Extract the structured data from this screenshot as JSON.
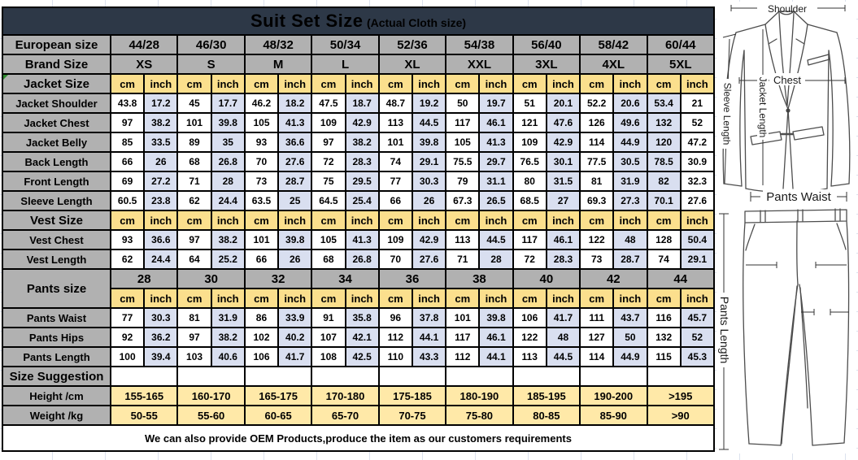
{
  "title": {
    "main": "Suit Set Size",
    "sub": "(Actual Cloth size)"
  },
  "units": {
    "cm": "cm",
    "inch": "inch"
  },
  "header_rows": [
    {
      "label": "European size",
      "values": [
        "44/28",
        "46/30",
        "48/32",
        "50/34",
        "52/36",
        "54/38",
        "56/40",
        "58/42",
        "60/44"
      ]
    },
    {
      "label": "Brand Size",
      "values": [
        "XS",
        "S",
        "M",
        "L",
        "XL",
        "XXL",
        "3XL",
        "4XL",
        "5XL"
      ]
    }
  ],
  "sections": [
    {
      "type": "measure",
      "label": "Jacket Size",
      "rows": [
        {
          "label": "Jacket Shoulder",
          "cm": [
            "43.8",
            "45",
            "46.2",
            "47.5",
            "48.7",
            "50",
            "51",
            "52.2",
            "53.4"
          ],
          "inch": [
            "17.2",
            "17.7",
            "18.2",
            "18.7",
            "19.2",
            "19.7",
            "20.1",
            "20.6",
            "21"
          ]
        },
        {
          "label": "Jacket Chest",
          "cm": [
            "97",
            "101",
            "105",
            "109",
            "113",
            "117",
            "121",
            "126",
            "132"
          ],
          "inch": [
            "38.2",
            "39.8",
            "41.3",
            "42.9",
            "44.5",
            "46.1",
            "47.6",
            "49.6",
            "52"
          ]
        },
        {
          "label": "Jacket Belly",
          "cm": [
            "85",
            "89",
            "93",
            "97",
            "101",
            "105",
            "109",
            "114",
            "120"
          ],
          "inch": [
            "33.5",
            "35",
            "36.6",
            "38.2",
            "39.8",
            "41.3",
            "42.9",
            "44.9",
            "47.2"
          ]
        },
        {
          "label": "Back Length",
          "cm": [
            "66",
            "68",
            "70",
            "72",
            "74",
            "75.5",
            "76.5",
            "77.5",
            "78.5"
          ],
          "inch": [
            "26",
            "26.8",
            "27.6",
            "28.3",
            "29.1",
            "29.7",
            "30.1",
            "30.5",
            "30.9"
          ]
        },
        {
          "label": "Front Length",
          "cm": [
            "69",
            "71",
            "73",
            "75",
            "77",
            "79",
            "80",
            "81",
            "82"
          ],
          "inch": [
            "27.2",
            "28",
            "28.7",
            "29.5",
            "30.3",
            "31.1",
            "31.5",
            "31.9",
            "32.3"
          ]
        },
        {
          "label": "Sleeve Length",
          "cm": [
            "60.5",
            "62",
            "63.5",
            "64.5",
            "66",
            "67.3",
            "68.5",
            "69.3",
            "70.1"
          ],
          "inch": [
            "23.8",
            "24.4",
            "25",
            "25.4",
            "26",
            "26.5",
            "27",
            "27.3",
            "27.6"
          ]
        }
      ]
    },
    {
      "type": "measure",
      "label": "Vest Size",
      "rows": [
        {
          "label": "Vest Chest",
          "cm": [
            "93",
            "97",
            "101",
            "105",
            "109",
            "113",
            "117",
            "122",
            "128"
          ],
          "inch": [
            "36.6",
            "38.2",
            "39.8",
            "41.3",
            "42.9",
            "44.5",
            "46.1",
            "48",
            "50.4"
          ]
        },
        {
          "label": "Vest Length",
          "cm": [
            "62",
            "64",
            "66",
            "68",
            "70",
            "71",
            "72",
            "73",
            "74"
          ],
          "inch": [
            "24.4",
            "25.2",
            "26",
            "26.8",
            "27.6",
            "28",
            "28.3",
            "28.7",
            "29.1"
          ]
        }
      ]
    },
    {
      "type": "pants",
      "label": "Pants size",
      "sizes": [
        "28",
        "30",
        "32",
        "34",
        "36",
        "38",
        "40",
        "42",
        "44"
      ],
      "rows": [
        {
          "label": "Pants Waist",
          "cm": [
            "77",
            "81",
            "86",
            "91",
            "96",
            "101",
            "106",
            "111",
            "116"
          ],
          "inch": [
            "30.3",
            "31.9",
            "33.9",
            "35.8",
            "37.8",
            "39.8",
            "41.7",
            "43.7",
            "45.7"
          ]
        },
        {
          "label": "Pants Hips",
          "cm": [
            "92",
            "97",
            "102",
            "107",
            "112",
            "117",
            "122",
            "127",
            "132"
          ],
          "inch": [
            "36.2",
            "38.2",
            "40.2",
            "42.1",
            "44.1",
            "46.1",
            "48",
            "50",
            "52"
          ]
        },
        {
          "label": "Pants Length",
          "cm": [
            "100",
            "103",
            "106",
            "108",
            "110",
            "112",
            "113",
            "114",
            "115"
          ],
          "inch": [
            "39.4",
            "40.6",
            "41.7",
            "42.5",
            "43.3",
            "44.1",
            "44.5",
            "44.9",
            "45.3"
          ]
        }
      ]
    },
    {
      "type": "suggestion",
      "label": "Size Suggestion",
      "rows": [
        {
          "label": "Height /cm",
          "values": [
            "155-165",
            "160-170",
            "165-175",
            "170-180",
            "175-185",
            "180-190",
            "185-195",
            "190-200",
            ">195"
          ]
        },
        {
          "label": "Weight /kg",
          "values": [
            "50-55",
            "55-60",
            "60-65",
            "65-70",
            "70-75",
            "75-80",
            "80-85",
            "85-90",
            ">90"
          ]
        }
      ]
    }
  ],
  "footer": "We can also provide OEM Products,produce the item as our customers requirements",
  "diagram": {
    "shoulder": "Shoulder",
    "chest": "Chest",
    "jacket_length": "Jacket Length",
    "sleeve_length": "Sleeve Length",
    "pants_waist": "Pants Waist",
    "pants_length": "Pants Length"
  },
  "colors": {
    "header_bg": "#2d3847",
    "section_gray": "#b1b1b1",
    "unit_yellow": "#fbdf8d",
    "inch_blue": "#d9dff0",
    "suggestion_yellow": "#ffe9a8"
  }
}
